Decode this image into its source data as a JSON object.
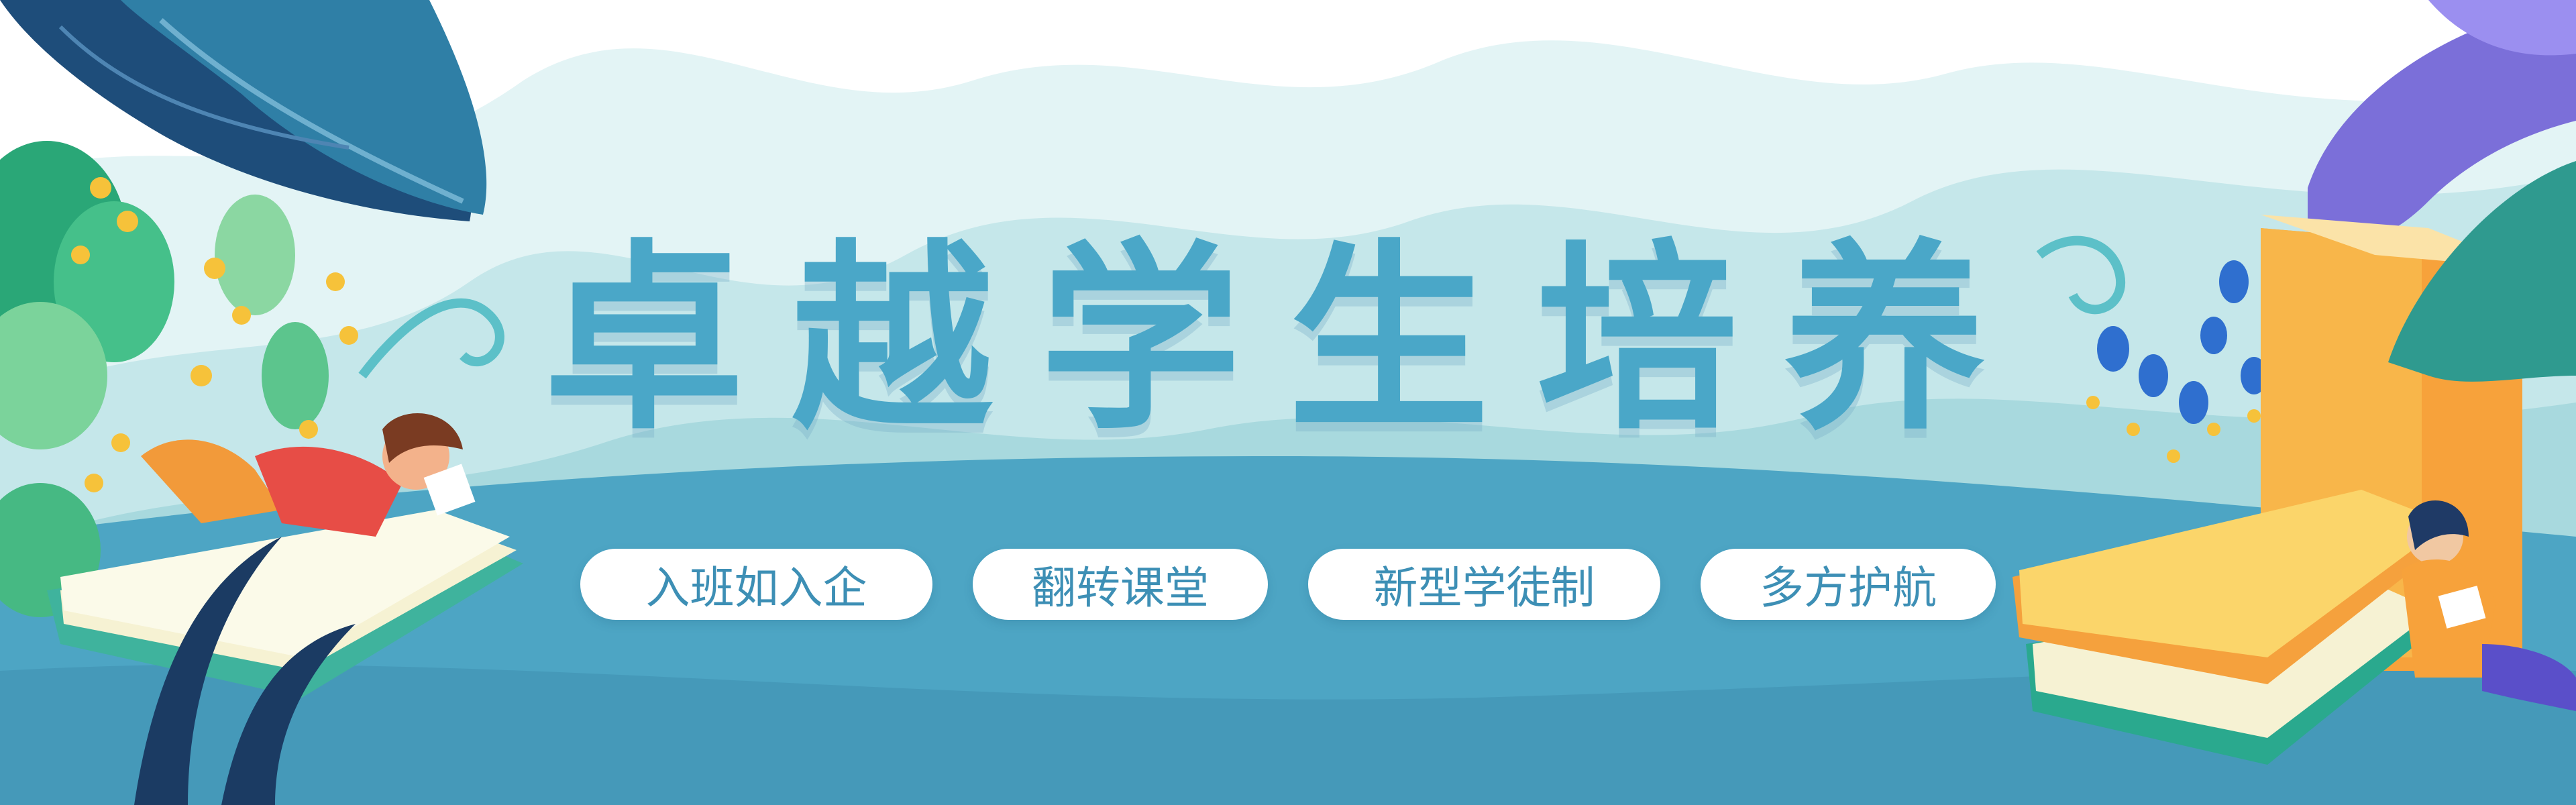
{
  "banner": {
    "headline": "卓越学生培养",
    "pills": [
      "入班如入企",
      "翻转课堂",
      "新型学徒制",
      "多方护航"
    ]
  },
  "colors": {
    "headline": "#4aa7c8",
    "ground": "#4da5c4",
    "pill_text": "#3d8fb5",
    "pill_bg": "#ffffff"
  }
}
